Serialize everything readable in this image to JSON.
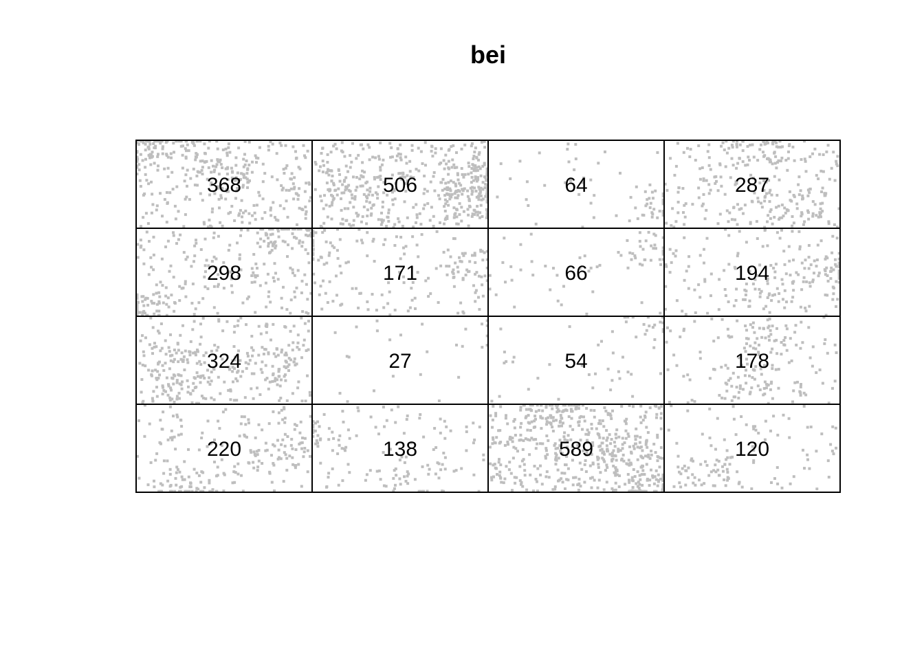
{
  "chart_data": {
    "type": "heatmap",
    "title": "bei",
    "rows": 4,
    "columns": 4,
    "counts": [
      [
        368,
        506,
        64,
        287
      ],
      [
        298,
        171,
        66,
        194
      ],
      [
        324,
        27,
        54,
        178
      ],
      [
        220,
        138,
        589,
        120
      ]
    ],
    "point_color": "#bebebe",
    "grid_color": "#000000",
    "text_color": "#000000"
  }
}
